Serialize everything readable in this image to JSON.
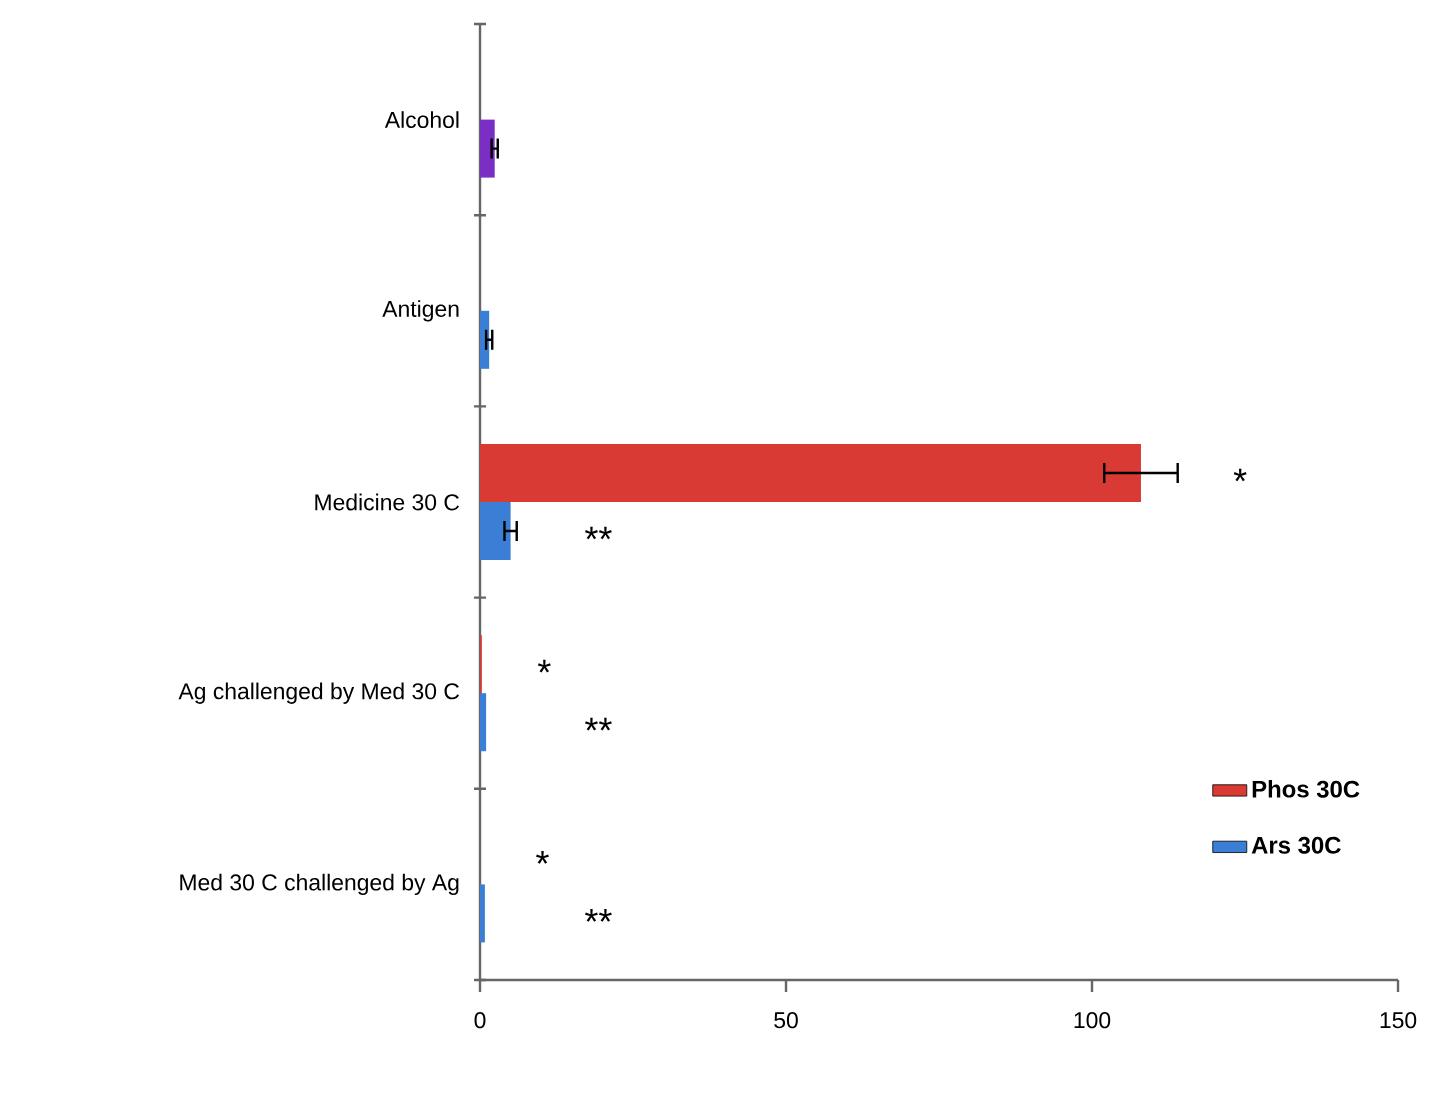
{
  "chart_data": {
    "type": "bar",
    "orientation": "horizontal",
    "categories": [
      "Alcohol",
      "Antigen",
      "Medicine 30 C",
      "Ag challenged  by  Med 30 C",
      "Med 30 C challenged by Ag"
    ],
    "series": [
      {
        "name": "Phos 30C",
        "color": "#d93a34",
        "values": [
          null,
          null,
          108,
          0.3,
          null
        ],
        "errors": [
          null,
          null,
          6,
          null,
          null
        ]
      },
      {
        "name": "Ars 30C",
        "color": "#3a7fd5",
        "colors": [
          "#7a2ec4",
          "#3a7fd5",
          "#3a7fd5",
          "#3a7fd5",
          "#3a7fd5"
        ],
        "values": [
          2.4,
          1.5,
          5,
          1,
          0.8
        ],
        "errors": [
          0.5,
          0.5,
          1,
          null,
          null
        ]
      }
    ],
    "xlim": [
      0,
      150
    ],
    "xticks": [
      0,
      50,
      100,
      150
    ],
    "legend": "bottom right",
    "grid": false,
    "annotations": [
      "*",
      "**",
      "*",
      "**",
      "*",
      "**"
    ]
  }
}
